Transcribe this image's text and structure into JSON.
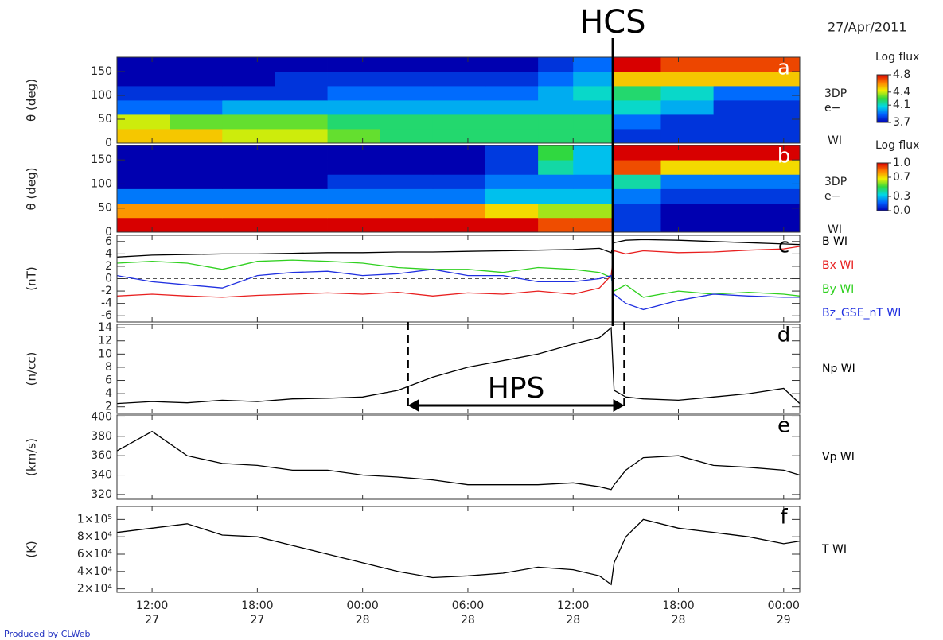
{
  "header": {
    "date": "27/Apr/2011"
  },
  "footer": {
    "credit": "Produced by CLWeb"
  },
  "annotations": {
    "hcs": {
      "label": "HCS",
      "x": "2011-04-28T14:15"
    },
    "hps": {
      "label": "HPS",
      "start": "2011-04-28T02:35",
      "end": "2011-04-28T14:55"
    }
  },
  "time_axis": {
    "xlim": [
      "2011-04-27T10:00",
      "2011-04-29T00:55"
    ],
    "xticks": [
      {
        "value": "2011-04-27T12:00",
        "label": [
          "12:00",
          "27"
        ]
      },
      {
        "value": "2011-04-27T18:00",
        "label": [
          "18:00",
          "27"
        ]
      },
      {
        "value": "2011-04-28T00:00",
        "label": [
          "00:00",
          "28"
        ]
      },
      {
        "value": "2011-04-28T06:00",
        "label": [
          "06:00",
          "28"
        ]
      },
      {
        "value": "2011-04-28T12:00",
        "label": [
          "12:00",
          "28"
        ]
      },
      {
        "value": "2011-04-28T18:00",
        "label": [
          "18:00",
          "28"
        ]
      },
      {
        "value": "2011-04-29T00:00",
        "label": [
          "00:00",
          "29"
        ]
      }
    ]
  },
  "chart_data": [
    {
      "type": "heatmap",
      "panel": "a",
      "ylabel": "θ (deg)",
      "instrument": [
        "3DP",
        "e−"
      ],
      "source": "WI",
      "ylim": [
        0,
        180
      ],
      "yticks": [
        0,
        50,
        100,
        150
      ],
      "x_edges": [
        "2011-04-27T10:00",
        "2011-04-27T13:00",
        "2011-04-27T16:00",
        "2011-04-27T19:00",
        "2011-04-27T22:00",
        "2011-04-28T01:00",
        "2011-04-28T04:00",
        "2011-04-28T07:00",
        "2011-04-28T10:00",
        "2011-04-28T12:00",
        "2011-04-28T14:15",
        "2011-04-28T17:00",
        "2011-04-28T20:00",
        "2011-04-29T00:55"
      ],
      "y_edges": [
        0,
        30,
        60,
        90,
        120,
        150,
        180
      ],
      "values": [
        [
          4.5,
          4.5,
          4.4,
          4.4,
          4.3,
          4.2,
          4.2,
          4.2,
          4.2,
          4.2,
          3.8,
          3.8,
          3.8
        ],
        [
          4.4,
          4.3,
          4.3,
          4.3,
          4.2,
          4.2,
          4.2,
          4.2,
          4.2,
          4.2,
          3.9,
          3.8,
          3.8
        ],
        [
          3.9,
          3.9,
          4.0,
          4.0,
          4.0,
          4.0,
          4.0,
          4.0,
          4.0,
          4.0,
          4.1,
          4.0,
          3.8
        ],
        [
          3.8,
          3.8,
          3.8,
          3.8,
          3.9,
          3.9,
          3.9,
          3.9,
          4.0,
          4.1,
          4.2,
          4.1,
          3.9
        ],
        [
          3.7,
          3.7,
          3.7,
          3.8,
          3.8,
          3.8,
          3.8,
          3.8,
          3.9,
          4.0,
          4.5,
          4.5,
          4.5
        ],
        [
          3.7,
          3.7,
          3.7,
          3.7,
          3.7,
          3.7,
          3.7,
          3.7,
          3.8,
          3.9,
          4.8,
          4.7,
          4.7
        ]
      ],
      "colormap": [
        "#0000b0",
        "#0060ff",
        "#00d8e8",
        "#30d840",
        "#f0f000",
        "#ff8000",
        "#d80000"
      ],
      "colorbar": {
        "title": "Log flux",
        "clim": [
          3.7,
          4.8
        ],
        "ticks": [
          3.7,
          4.1,
          4.4,
          4.8
        ]
      }
    },
    {
      "type": "heatmap",
      "panel": "b",
      "ylabel": "θ (deg)",
      "instrument": [
        "3DP",
        "e−"
      ],
      "source": "WI",
      "ylim": [
        0,
        180
      ],
      "yticks": [
        0,
        50,
        100,
        150
      ],
      "x_edges": [
        "2011-04-27T10:00",
        "2011-04-27T13:00",
        "2011-04-27T16:00",
        "2011-04-27T19:00",
        "2011-04-27T22:00",
        "2011-04-28T01:00",
        "2011-04-28T04:00",
        "2011-04-28T07:00",
        "2011-04-28T10:00",
        "2011-04-28T12:00",
        "2011-04-28T14:15",
        "2011-04-28T17:00",
        "2011-04-28T20:00",
        "2011-04-29T00:55"
      ],
      "y_edges": [
        0,
        30,
        60,
        90,
        120,
        150,
        180
      ],
      "values": [
        [
          1.0,
          1.0,
          1.0,
          1.0,
          1.0,
          1.0,
          1.0,
          1.0,
          0.9,
          0.9,
          0.1,
          0.0,
          0.0
        ],
        [
          0.8,
          0.8,
          0.8,
          0.8,
          0.8,
          0.8,
          0.8,
          0.7,
          0.6,
          0.6,
          0.1,
          0.0,
          0.0
        ],
        [
          0.2,
          0.2,
          0.2,
          0.2,
          0.2,
          0.2,
          0.2,
          0.3,
          0.3,
          0.3,
          0.2,
          0.1,
          0.1
        ],
        [
          0.0,
          0.0,
          0.0,
          0.0,
          0.1,
          0.1,
          0.1,
          0.2,
          0.2,
          0.2,
          0.4,
          0.2,
          0.2
        ],
        [
          0.0,
          0.0,
          0.0,
          0.0,
          0.0,
          0.0,
          0.0,
          0.1,
          0.4,
          0.3,
          0.9,
          0.7,
          0.7
        ],
        [
          0.0,
          0.0,
          0.0,
          0.0,
          0.0,
          0.0,
          0.0,
          0.1,
          0.5,
          0.3,
          1.0,
          1.0,
          1.0
        ]
      ],
      "colormap": [
        "#0000b0",
        "#0060ff",
        "#00d8e8",
        "#30d840",
        "#f0f000",
        "#ff8000",
        "#d80000"
      ],
      "colorbar": {
        "title": "Log flux",
        "clim": [
          0,
          1
        ],
        "ticks": [
          {
            "value": 0,
            "label": "0.0"
          },
          0.3,
          0.7,
          {
            "value": 1,
            "label": "1.0"
          }
        ]
      }
    },
    {
      "type": "line",
      "panel": "c",
      "ylabel": "(nT)",
      "ylim": [
        -7,
        7
      ],
      "yticks": [
        -6,
        -4,
        -2,
        0,
        2,
        4,
        6
      ],
      "zero_line": true,
      "x": [
        "2011-04-27T10:00",
        "2011-04-27T12:00",
        "2011-04-27T14:00",
        "2011-04-27T16:00",
        "2011-04-27T18:00",
        "2011-04-27T20:00",
        "2011-04-27T22:00",
        "2011-04-28T00:00",
        "2011-04-28T02:00",
        "2011-04-28T04:00",
        "2011-04-28T06:00",
        "2011-04-28T08:00",
        "2011-04-28T10:00",
        "2011-04-28T12:00",
        "2011-04-28T13:30",
        "2011-04-28T14:10",
        "2011-04-28T14:20",
        "2011-04-28T15:00",
        "2011-04-28T16:00",
        "2011-04-28T18:00",
        "2011-04-28T20:00",
        "2011-04-28T22:00",
        "2011-04-29T00:00",
        "2011-04-29T00:55"
      ],
      "series": [
        {
          "name": "B WI",
          "color": "#000000",
          "values": [
            3.5,
            3.8,
            3.9,
            4,
            4,
            4.1,
            4.2,
            4.2,
            4.3,
            4.3,
            4.4,
            4.5,
            4.6,
            4.7,
            4.9,
            4.2,
            5.8,
            6.2,
            6.3,
            6.2,
            6.0,
            5.8,
            5.6,
            5.5
          ]
        },
        {
          "name": "Bx WI",
          "color": "#e82020",
          "values": [
            -2.8,
            -2.5,
            -2.8,
            -3,
            -2.7,
            -2.5,
            -2.3,
            -2.5,
            -2.2,
            -2.8,
            -2.3,
            -2.5,
            -2.0,
            -2.5,
            -1.5,
            0.5,
            4.5,
            4.0,
            4.5,
            4.2,
            4.3,
            4.6,
            4.8,
            5.2
          ]
        },
        {
          "name": "By WI",
          "color": "#30d020",
          "values": [
            2.5,
            2.8,
            2.5,
            1.5,
            2.8,
            3.0,
            2.8,
            2.5,
            1.8,
            1.5,
            1.5,
            1.0,
            1.8,
            1.5,
            1.0,
            0.2,
            -2.0,
            -1.0,
            -3.0,
            -2.0,
            -2.5,
            -2.2,
            -2.5,
            -2.8
          ]
        },
        {
          "name": "Bz_GSE_nT WI",
          "color": "#2030e0",
          "values": [
            0.5,
            -0.5,
            -1.0,
            -1.5,
            0.5,
            1.0,
            1.2,
            0.5,
            0.8,
            1.5,
            0.5,
            0.5,
            -0.5,
            -0.5,
            0.0,
            0.5,
            -2.5,
            -4.0,
            -5.0,
            -3.5,
            -2.5,
            -2.8,
            -3.0,
            -3.0
          ]
        }
      ]
    },
    {
      "type": "line",
      "panel": "d",
      "ylabel": "(n/cc)",
      "ylim": [
        1,
        14.5
      ],
      "yticks": [
        2,
        4,
        6,
        8,
        10,
        12,
        14
      ],
      "x": [
        "2011-04-27T10:00",
        "2011-04-27T12:00",
        "2011-04-27T14:00",
        "2011-04-27T16:00",
        "2011-04-27T18:00",
        "2011-04-27T20:00",
        "2011-04-27T22:00",
        "2011-04-28T00:00",
        "2011-04-28T02:00",
        "2011-04-28T04:00",
        "2011-04-28T06:00",
        "2011-04-28T08:00",
        "2011-04-28T10:00",
        "2011-04-28T12:00",
        "2011-04-28T13:30",
        "2011-04-28T14:10",
        "2011-04-28T14:20",
        "2011-04-28T15:00",
        "2011-04-28T16:00",
        "2011-04-28T18:00",
        "2011-04-28T20:00",
        "2011-04-28T22:00",
        "2011-04-29T00:00",
        "2011-04-29T00:55"
      ],
      "series": [
        {
          "name": "Np WI",
          "color": "#000000",
          "values": [
            2.5,
            2.8,
            2.6,
            3.0,
            2.8,
            3.2,
            3.3,
            3.5,
            4.5,
            6.5,
            8.0,
            9.0,
            10.0,
            11.5,
            12.5,
            14.0,
            4.5,
            3.5,
            3.2,
            3.0,
            3.5,
            4.0,
            4.8,
            2.5
          ]
        }
      ]
    },
    {
      "type": "line",
      "panel": "e",
      "ylabel": "(km/s)",
      "ylim": [
        315,
        402
      ],
      "yticks": [
        320,
        340,
        360,
        380,
        400
      ],
      "x": [
        "2011-04-27T10:00",
        "2011-04-27T12:00",
        "2011-04-27T14:00",
        "2011-04-27T16:00",
        "2011-04-27T18:00",
        "2011-04-27T20:00",
        "2011-04-27T22:00",
        "2011-04-28T00:00",
        "2011-04-28T02:00",
        "2011-04-28T04:00",
        "2011-04-28T06:00",
        "2011-04-28T08:00",
        "2011-04-28T10:00",
        "2011-04-28T12:00",
        "2011-04-28T13:30",
        "2011-04-28T14:10",
        "2011-04-28T14:20",
        "2011-04-28T15:00",
        "2011-04-28T16:00",
        "2011-04-28T18:00",
        "2011-04-28T20:00",
        "2011-04-28T22:00",
        "2011-04-29T00:00",
        "2011-04-29T00:55"
      ],
      "series": [
        {
          "name": "Vp WI",
          "color": "#000000",
          "values": [
            365,
            385,
            360,
            352,
            350,
            345,
            345,
            340,
            338,
            335,
            330,
            330,
            330,
            332,
            328,
            325,
            330,
            345,
            358,
            360,
            350,
            348,
            345,
            340
          ]
        }
      ]
    },
    {
      "type": "line",
      "panel": "f",
      "ylabel": "(K)",
      "ylim": [
        16000,
        115000
      ],
      "yticks": [
        {
          "value": 20000,
          "label": "2×10⁴"
        },
        {
          "value": 40000,
          "label": "4×10⁴"
        },
        {
          "value": 60000,
          "label": "6×10⁴"
        },
        {
          "value": 80000,
          "label": "8×10⁴"
        },
        {
          "value": 100000,
          "label": "1×10⁵"
        }
      ],
      "x": [
        "2011-04-27T10:00",
        "2011-04-27T12:00",
        "2011-04-27T14:00",
        "2011-04-27T16:00",
        "2011-04-27T18:00",
        "2011-04-27T20:00",
        "2011-04-27T22:00",
        "2011-04-28T00:00",
        "2011-04-28T02:00",
        "2011-04-28T04:00",
        "2011-04-28T06:00",
        "2011-04-28T08:00",
        "2011-04-28T10:00",
        "2011-04-28T12:00",
        "2011-04-28T13:30",
        "2011-04-28T14:10",
        "2011-04-28T14:20",
        "2011-04-28T15:00",
        "2011-04-28T16:00",
        "2011-04-28T18:00",
        "2011-04-28T20:00",
        "2011-04-28T22:00",
        "2011-04-29T00:00",
        "2011-04-29T00:55"
      ],
      "series": [
        {
          "name": "T WI",
          "color": "#000000",
          "values": [
            85000,
            90000,
            95000,
            82000,
            80000,
            70000,
            60000,
            50000,
            40000,
            33000,
            35000,
            38000,
            45000,
            42000,
            35000,
            25000,
            50000,
            80000,
            100000,
            90000,
            85000,
            80000,
            72000,
            75000
          ]
        }
      ]
    }
  ]
}
